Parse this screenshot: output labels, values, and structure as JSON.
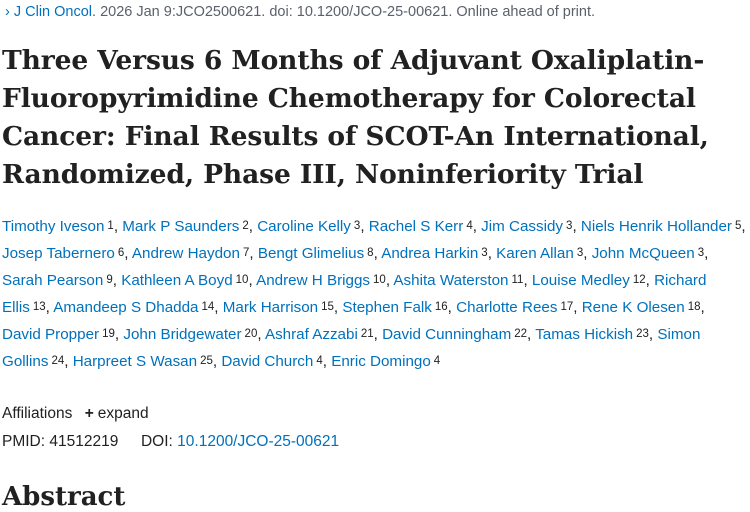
{
  "citation": {
    "journal": "J Clin Oncol",
    "rest": ". 2026 Jan 9:JCO2500621. doi: 10.1200/JCO-25-00621. Online ahead of print."
  },
  "title": "Three Versus 6 Months of Adjuvant Oxaliplatin-Fluoropyrimidine Chemotherapy for Colorectal Cancer: Final Results of SCOT-An International, Randomized, Phase III, Noninferiority Trial",
  "authors": [
    {
      "name": "Timothy Iveson",
      "aff": "1"
    },
    {
      "name": "Mark P Saunders",
      "aff": "2"
    },
    {
      "name": "Caroline Kelly",
      "aff": "3"
    },
    {
      "name": "Rachel S Kerr",
      "aff": "4"
    },
    {
      "name": "Jim Cassidy",
      "aff": "3"
    },
    {
      "name": "Niels Henrik Hollander",
      "aff": "5"
    },
    {
      "name": "Josep Tabernero",
      "aff": "6"
    },
    {
      "name": "Andrew Haydon",
      "aff": "7"
    },
    {
      "name": "Bengt Glimelius",
      "aff": "8"
    },
    {
      "name": "Andrea Harkin",
      "aff": "3"
    },
    {
      "name": "Karen Allan",
      "aff": "3"
    },
    {
      "name": "John McQueen",
      "aff": "3"
    },
    {
      "name": "Sarah Pearson",
      "aff": "9"
    },
    {
      "name": "Kathleen A Boyd",
      "aff": "10"
    },
    {
      "name": "Andrew H Briggs",
      "aff": "10"
    },
    {
      "name": "Ashita Waterston",
      "aff": "11"
    },
    {
      "name": "Louise Medley",
      "aff": "12"
    },
    {
      "name": "Richard Ellis",
      "aff": "13"
    },
    {
      "name": "Amandeep S Dhadda",
      "aff": "14"
    },
    {
      "name": "Mark Harrison",
      "aff": "15"
    },
    {
      "name": "Stephen Falk",
      "aff": "16"
    },
    {
      "name": "Charlotte Rees",
      "aff": "17"
    },
    {
      "name": "Rene K Olesen",
      "aff": "18"
    },
    {
      "name": "David Propper",
      "aff": "19"
    },
    {
      "name": "John Bridgewater",
      "aff": "20"
    },
    {
      "name": "Ashraf Azzabi",
      "aff": "21"
    },
    {
      "name": "David Cunningham",
      "aff": "22"
    },
    {
      "name": "Tamas Hickish",
      "aff": "23"
    },
    {
      "name": "Simon Gollins",
      "aff": "24"
    },
    {
      "name": "Harpreet S Wasan",
      "aff": "25"
    },
    {
      "name": "David Church",
      "aff": "4"
    },
    {
      "name": "Enric Domingo",
      "aff": "4"
    }
  ],
  "affiliations": {
    "label": "Affiliations",
    "expand_icon": "plus-icon",
    "plus_glyph": "+",
    "expand_label": "expand"
  },
  "ids": {
    "pmid_label": "PMID:",
    "pmid_value": "41512219",
    "doi_label": "DOI:",
    "doi_value": "10.1200/JCO-25-00621"
  },
  "abstract_heading": "Abstract",
  "colors": {
    "link": "#0071bc",
    "text": "#212121",
    "muted": "#5b616b"
  }
}
